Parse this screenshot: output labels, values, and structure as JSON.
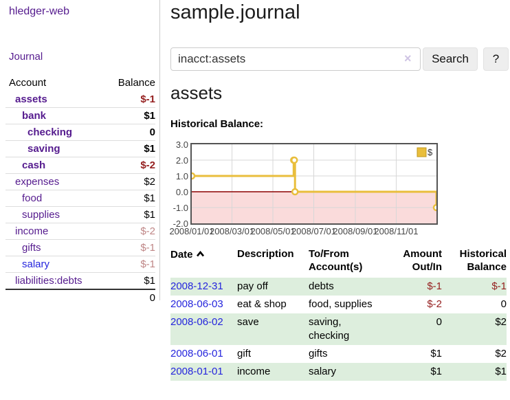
{
  "sidebar": {
    "brand": "hledger-web",
    "journal_link": "Journal",
    "accounts_table": {
      "headers": {
        "account": "Account",
        "balance": "Balance"
      },
      "rows": [
        {
          "name": "assets",
          "depth": 1,
          "bold": true,
          "balance": "$-1",
          "link_color": "purple"
        },
        {
          "name": "bank",
          "depth": 2,
          "bold": true,
          "balance": "$1",
          "link_color": "purple"
        },
        {
          "name": "checking",
          "depth": 3,
          "bold": true,
          "balance": "0",
          "link_color": "purple"
        },
        {
          "name": "saving",
          "depth": 3,
          "bold": true,
          "balance": "$1",
          "link_color": "purple"
        },
        {
          "name": "cash",
          "depth": 2,
          "bold": true,
          "balance": "$-2",
          "link_color": "purple"
        },
        {
          "name": "expenses",
          "depth": 1,
          "bold": false,
          "balance": "$2",
          "link_color": "purple"
        },
        {
          "name": "food",
          "depth": 2,
          "bold": false,
          "balance": "$1",
          "link_color": "purple"
        },
        {
          "name": "supplies",
          "depth": 2,
          "bold": false,
          "balance": "$1",
          "link_color": "purple"
        },
        {
          "name": "income",
          "depth": 1,
          "bold": false,
          "balance": "$-2",
          "link_color": "purple"
        },
        {
          "name": "gifts",
          "depth": 2,
          "bold": false,
          "balance": "$-1",
          "link_color": "purple"
        },
        {
          "name": "salary",
          "depth": 2,
          "bold": false,
          "balance": "$-1",
          "link_color": "blue"
        },
        {
          "name": "liabilities:debts",
          "depth": 1,
          "bold": false,
          "balance": "$1",
          "link_color": "purple"
        }
      ],
      "total": "0"
    }
  },
  "header": {
    "title": "sample.journal"
  },
  "search": {
    "value": "inacct:assets",
    "clear_icon": "×",
    "button_label": "Search",
    "help_label": "?"
  },
  "register": {
    "heading": "assets",
    "chart_label": "Historical Balance:",
    "table": {
      "headers": {
        "date": "Date",
        "description": "Description",
        "accounts": "To/From Account(s)",
        "amount": "Amount Out/In",
        "balance": "Historical Balance"
      },
      "rows": [
        {
          "date": "2008-12-31",
          "description": "pay off",
          "accounts": "debts",
          "amount": "$-1",
          "balance": "$-1"
        },
        {
          "date": "2008-06-03",
          "description": "eat & shop",
          "accounts": "food, supplies",
          "amount": "$-2",
          "balance": "0"
        },
        {
          "date": "2008-06-02",
          "description": "save",
          "accounts": "saving, checking",
          "amount": "0",
          "balance": "$2"
        },
        {
          "date": "2008-06-01",
          "description": "gift",
          "accounts": "gifts",
          "amount": "$1",
          "balance": "$2"
        },
        {
          "date": "2008-01-01",
          "description": "income",
          "accounts": "salary",
          "amount": "$1",
          "balance": "$1"
        }
      ]
    }
  },
  "chart_data": {
    "type": "line",
    "title": "Historical Balance:",
    "series": [
      {
        "name": "$",
        "points": [
          [
            "2008-01-01",
            1
          ],
          [
            "2008-06-01",
            2
          ],
          [
            "2008-06-02",
            2
          ],
          [
            "2008-06-03",
            0
          ],
          [
            "2008-12-31",
            -1
          ]
        ]
      }
    ],
    "step": "after",
    "x_range": [
      "2008-01-01",
      "2008-12-31"
    ],
    "ylim": [
      -2,
      3
    ],
    "y_ticks": [
      3,
      2,
      1,
      0,
      -1,
      -2
    ],
    "x_ticks": [
      "2008/01/01",
      "2008/03/01",
      "2008/05/01",
      "2008/07/01",
      "2008/09/01",
      "2008/11/01"
    ],
    "legend": {
      "label": "$",
      "position": "top-right"
    },
    "grid": true,
    "colors": {
      "line": "#e9be3c",
      "legend_border": "#c0981f",
      "negative_region": "#fadbdb",
      "zero_line": "#8b0000",
      "grid": "#d7d7d7",
      "border": "#545454"
    }
  }
}
